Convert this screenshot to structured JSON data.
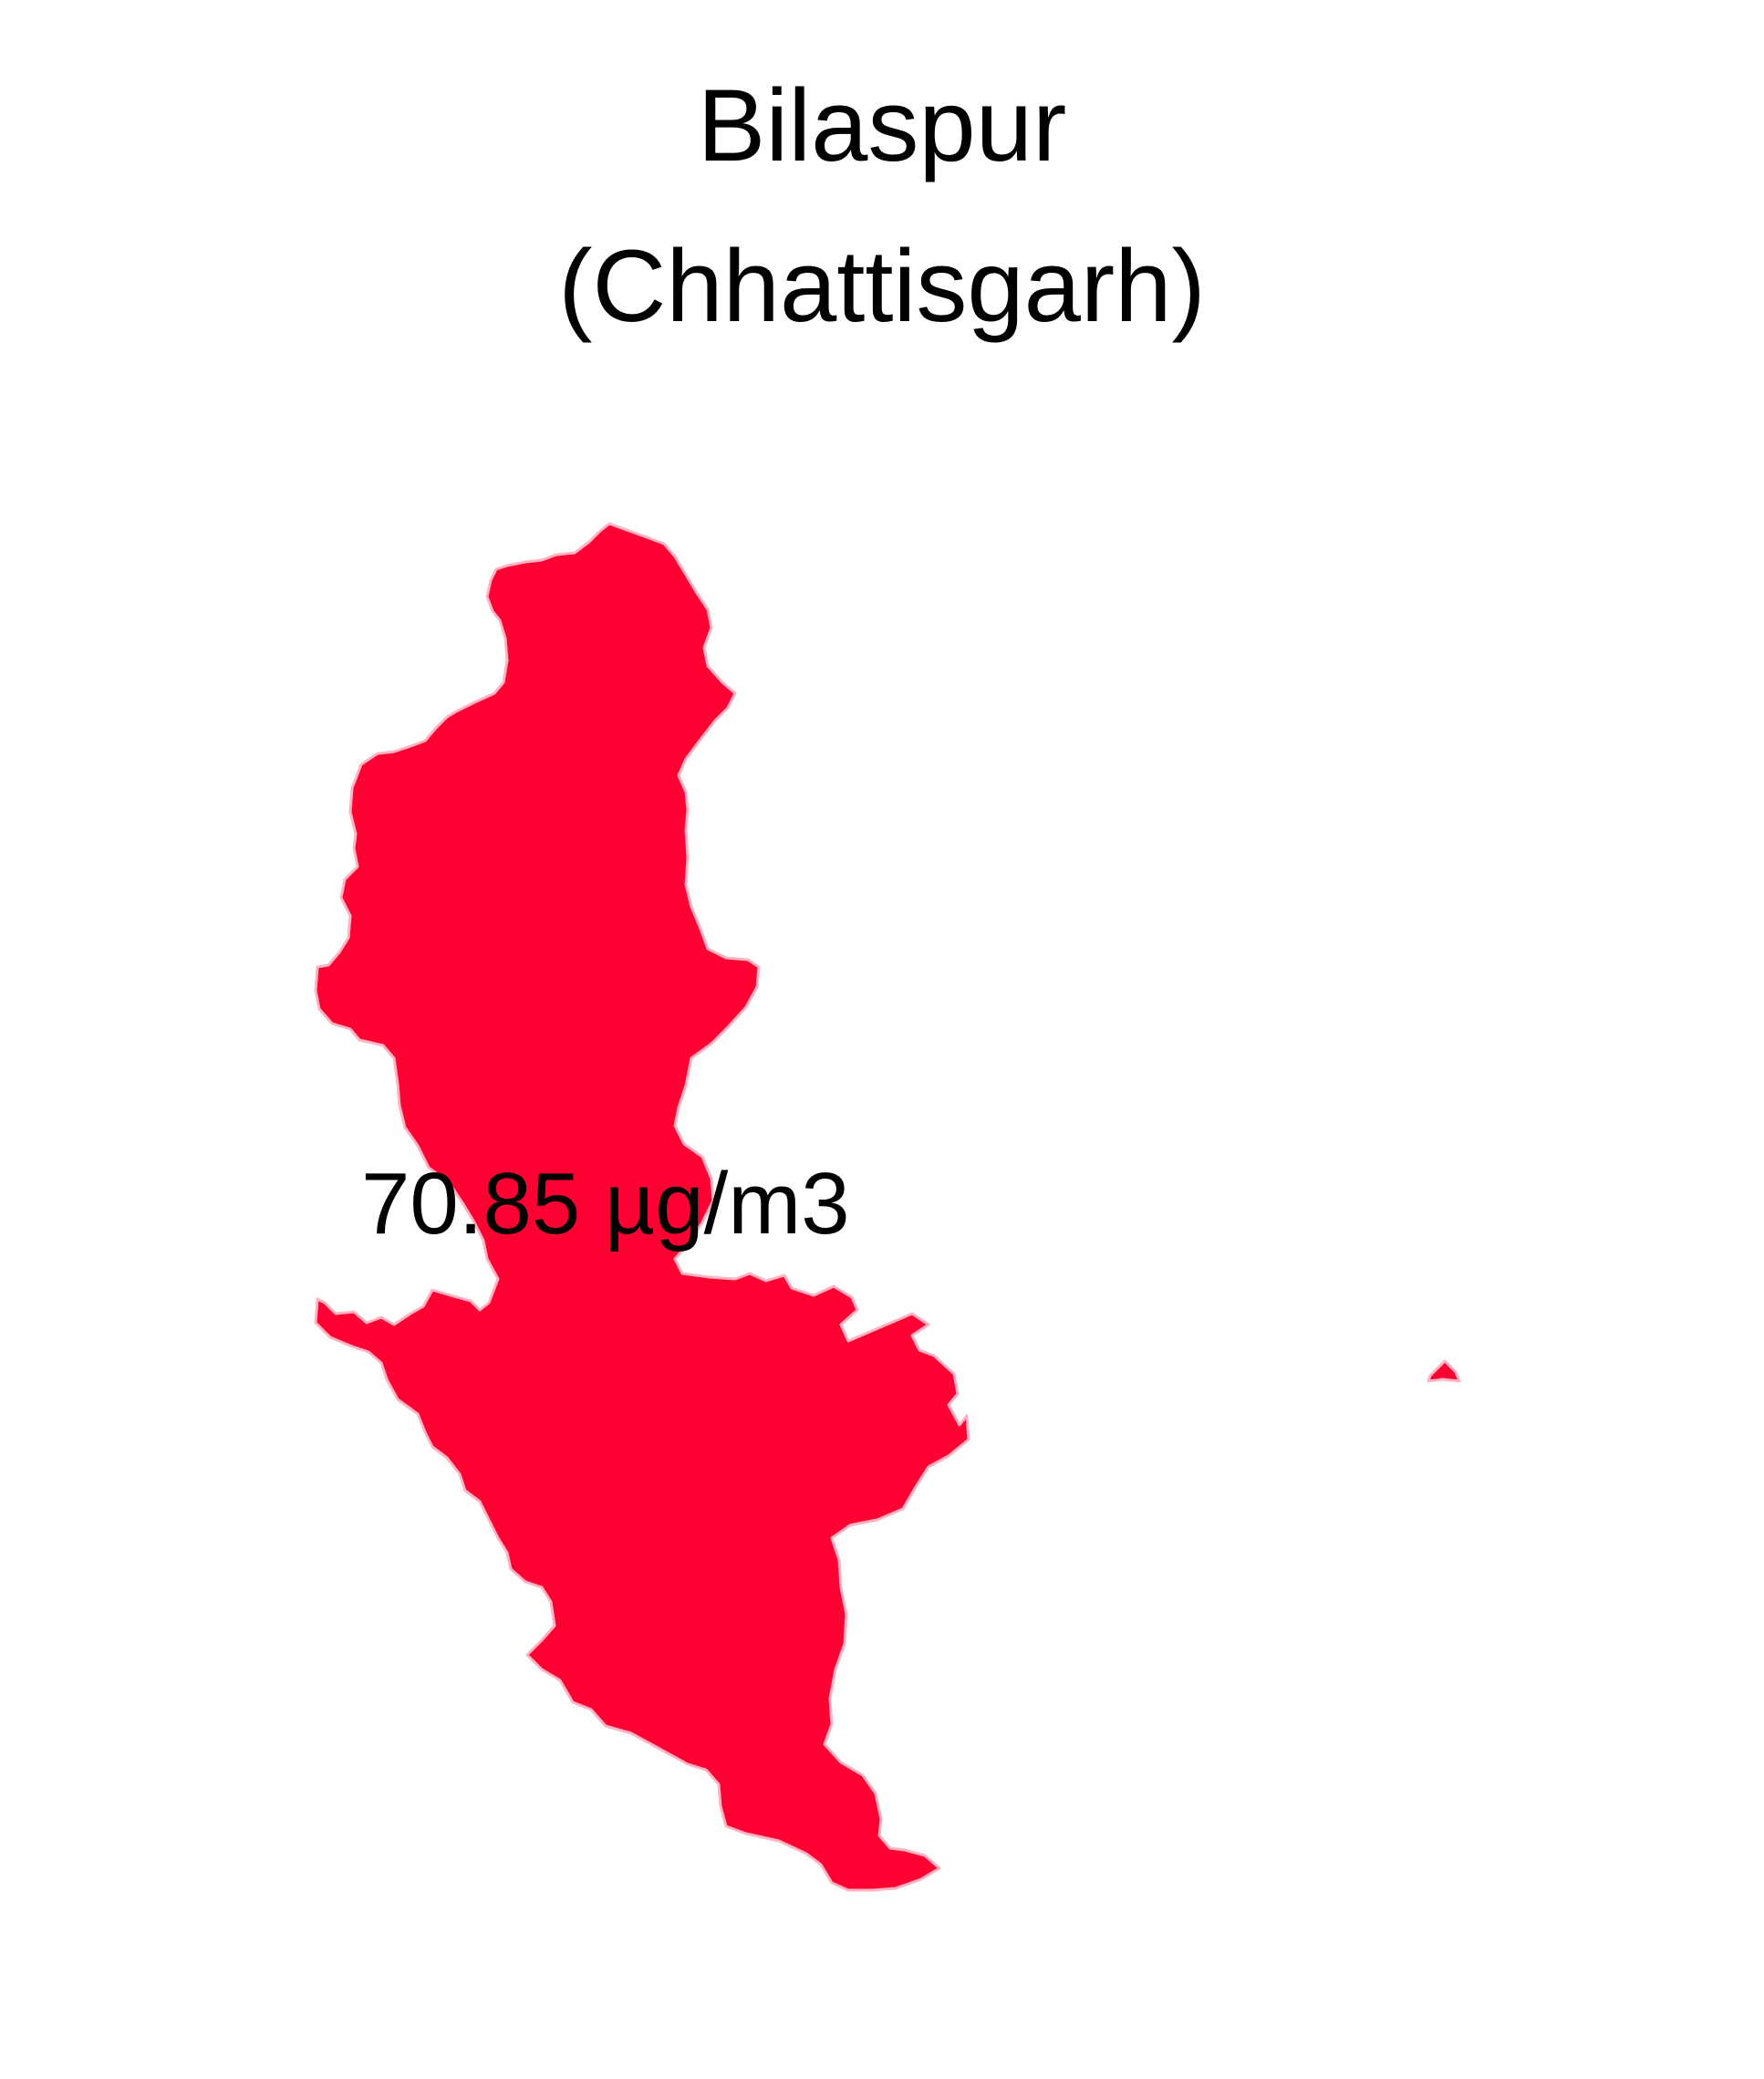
{
  "title": {
    "line1": "Bilaspur",
    "line2": "(Chhattisgarh)"
  },
  "map": {
    "district": "Bilaspur",
    "state": "Chhattisgarh",
    "value_label": "70.85 µg/m3",
    "value": 70.85,
    "unit": "µg/m3",
    "fill_color": "#ff0033",
    "border_color": "#ffb3c2"
  }
}
